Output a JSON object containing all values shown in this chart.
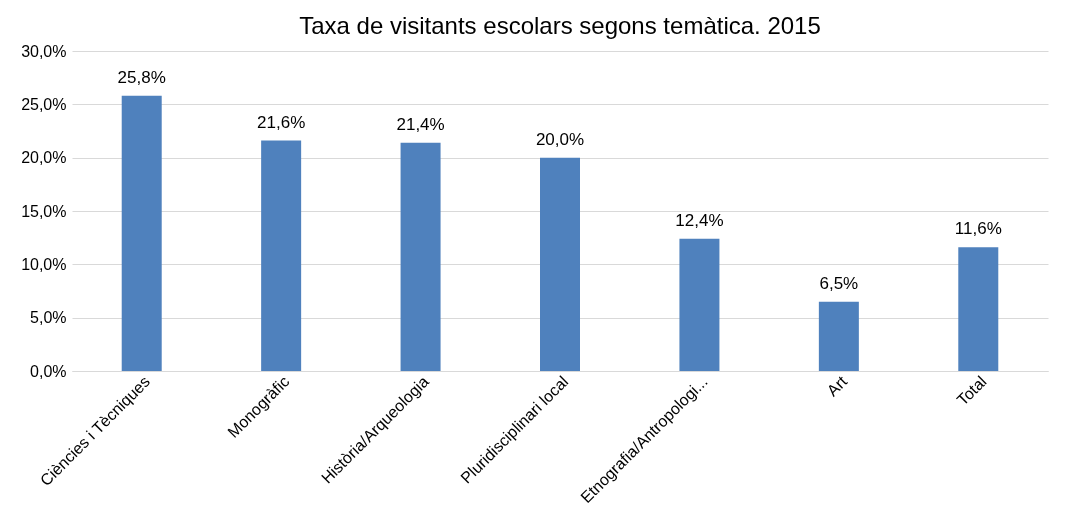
{
  "chart_data": {
    "type": "bar",
    "title": "Taxa de visitants escolars segons temàtica. 2015",
    "categories": [
      "Ciències i Tècniques",
      "Monogràfic",
      "Història/Arqueologia",
      "Pluridisciplinari local",
      "Etnografia/Antropologi...",
      "Art",
      "Total"
    ],
    "values": [
      25.8,
      21.6,
      21.4,
      20.0,
      12.4,
      6.5,
      11.6
    ],
    "value_labels": [
      "25,8%",
      "21,6%",
      "21,4%",
      "20,0%",
      "12,4%",
      "6,5%",
      "11,6%"
    ],
    "color": "#4f81bd",
    "ylim": [
      0,
      30
    ],
    "yticks": [
      {
        "value": 0,
        "label": "0,0%"
      },
      {
        "value": 5,
        "label": "5,0%"
      },
      {
        "value": 10,
        "label": "10,0%"
      },
      {
        "value": 15,
        "label": "15,0%"
      },
      {
        "value": 20,
        "label": "20,0%"
      },
      {
        "value": 25,
        "label": "25,0%"
      },
      {
        "value": 30,
        "label": "30,0%"
      }
    ],
    "grid": "y"
  }
}
